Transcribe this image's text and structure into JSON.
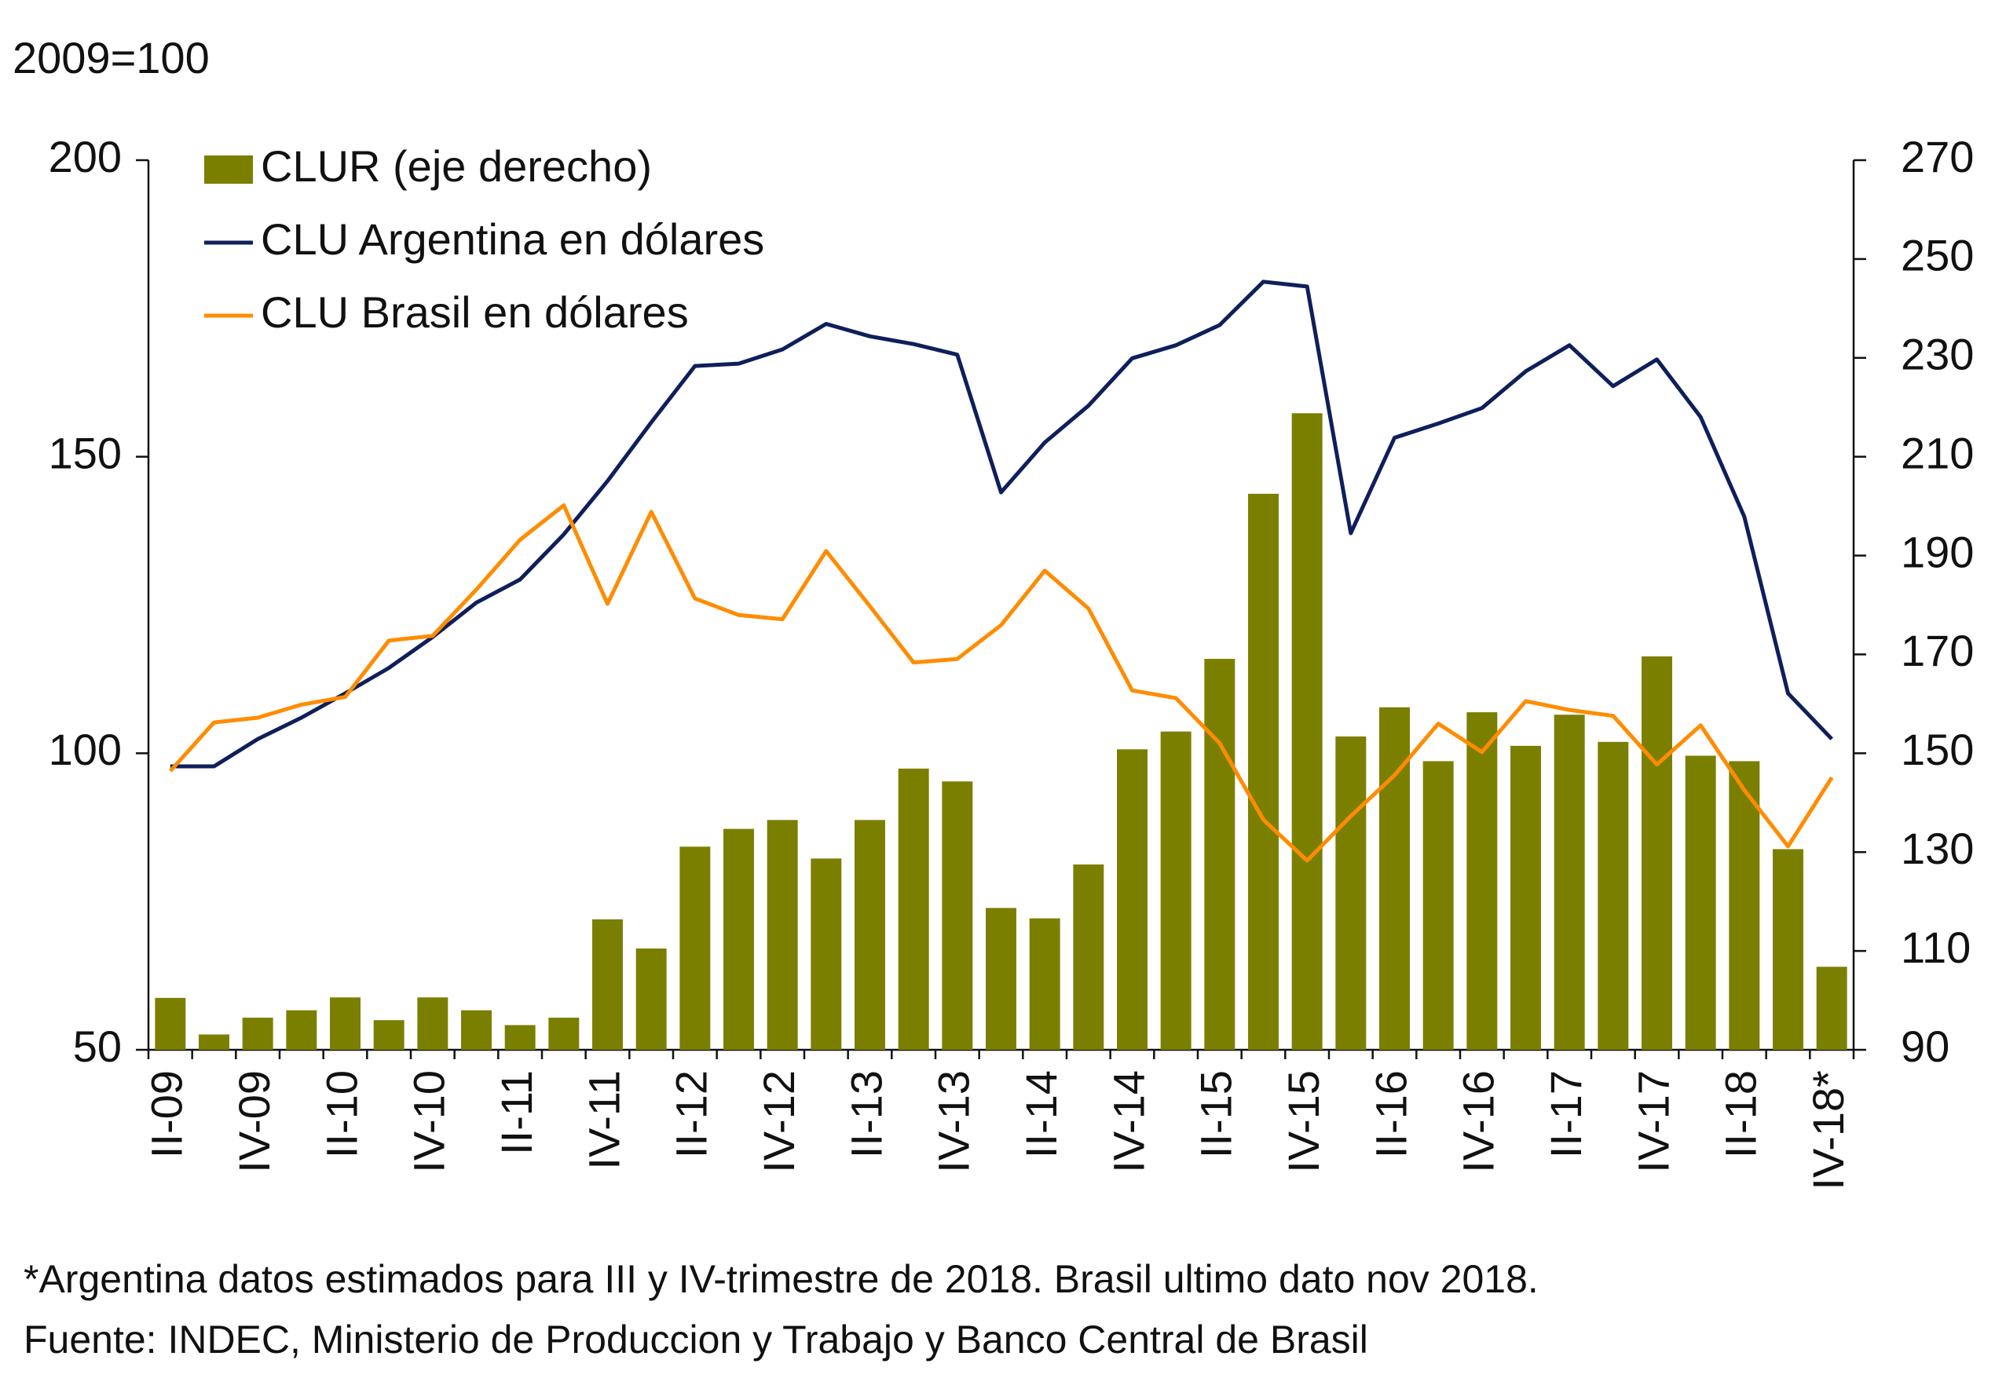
{
  "chart_data": {
    "type": "combo",
    "y_unit": "2009=100",
    "categories": [
      "II-09",
      null,
      "IV-09",
      null,
      "II-10",
      null,
      "IV-10",
      null,
      "II-11",
      null,
      "IV-11",
      null,
      "II-12",
      null,
      "IV-12",
      null,
      "II-13",
      null,
      "IV-13",
      null,
      "II-14",
      null,
      "IV-14",
      null,
      "II-15",
      null,
      "IV-15",
      null,
      "II-16",
      null,
      "IV-16",
      null,
      "II-17",
      null,
      "IV-17",
      null,
      "II-18",
      null,
      "IV-18*"
    ],
    "series": [
      {
        "name": "CLUR (eje derecho)",
        "type": "bar",
        "axis": "y2",
        "color": "#7b7f00",
        "values": [
          100.5,
          93.1,
          96.5,
          98,
          100.6,
          96,
          100.6,
          98,
          95,
          96.5,
          116.4,
          110.5,
          131.1,
          134.7,
          136.5,
          128.7,
          136.5,
          146.9,
          144.3,
          118.7,
          116.6,
          127.5,
          150.8,
          154.4,
          169.1,
          202.5,
          218.8,
          153.4,
          159.3,
          148.4,
          158.3,
          151.5,
          157.8,
          152.3,
          169.6,
          149.5,
          148.4,
          130.6,
          106.8
        ]
      },
      {
        "name": "CLU Argentina en dólares",
        "type": "line",
        "color": "#0e1f5b",
        "values": [
          97.8,
          97.8,
          102.4,
          106,
          110.1,
          114.4,
          119.6,
          125.4,
          129.3,
          136.9,
          145.9,
          155.8,
          165.3,
          165.7,
          168.1,
          172.4,
          170.3,
          169,
          167.2,
          144,
          152.4,
          158.6,
          166.6,
          168.8,
          172.2,
          179.5,
          178.7,
          137.1,
          153.2,
          155.6,
          158.2,
          164.4,
          168.8,
          161.9,
          166.4,
          156.7,
          139.9,
          110.1,
          102.4
        ]
      },
      {
        "name": "CLU Brasil en dólares",
        "type": "line",
        "color": "#ff8c00",
        "values": [
          97,
          105.2,
          106,
          108.2,
          109.5,
          119,
          119.8,
          127.6,
          136,
          141.8,
          125.2,
          140.7,
          126.1,
          123.3,
          122.6,
          134.1,
          124.8,
          115.3,
          115.9,
          121.6,
          130.8,
          124.4,
          110.6,
          109.3,
          101.7,
          88.8,
          81.9,
          89.4,
          96.3,
          105,
          100.2,
          108.8,
          107.3,
          106.3,
          98.1,
          104.7,
          93.8,
          84.3,
          95.9
        ]
      }
    ],
    "ylim": [
      50,
      200
    ],
    "yticks": [
      50,
      100,
      150,
      200
    ],
    "y2lim": [
      90,
      270
    ],
    "y2ticks": [
      90,
      110,
      130,
      150,
      170,
      190,
      210,
      230,
      250,
      270
    ],
    "grid": false,
    "legend": "top-left",
    "notes": [
      "*Argentina datos estimados para III y IV-trimestre de 2018. Brasil ultimo dato nov 2018.",
      "Fuente: INDEC, Ministerio de Produccion y Trabajo y Banco Central de Brasil"
    ]
  }
}
